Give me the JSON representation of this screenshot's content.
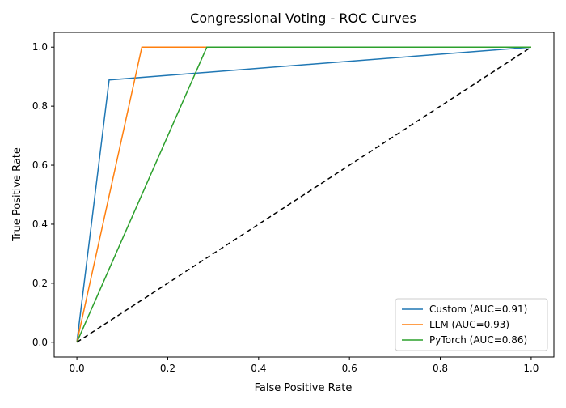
{
  "chart_data": {
    "type": "line",
    "title": "Congressional Voting - ROC Curves",
    "xlabel": "False Positive Rate",
    "ylabel": "True Positive Rate",
    "xlim": [
      -0.05,
      1.05
    ],
    "ylim": [
      -0.05,
      1.05
    ],
    "xticks": [
      "0.0",
      "0.2",
      "0.4",
      "0.6",
      "0.8",
      "1.0"
    ],
    "yticks": [
      "0.0",
      "0.2",
      "0.4",
      "0.6",
      "0.8",
      "1.0"
    ],
    "grid": false,
    "legend_position": "lower-right",
    "series": [
      {
        "name": "Custom (AUC=0.91)",
        "color": "#1f77b4",
        "x": [
          0.0,
          0.071,
          1.0
        ],
        "y": [
          0.0,
          0.889,
          1.0
        ]
      },
      {
        "name": "LLM (AUC=0.93)",
        "color": "#ff7f0e",
        "x": [
          0.0,
          0.143,
          1.0
        ],
        "y": [
          0.0,
          1.0,
          1.0
        ]
      },
      {
        "name": "PyTorch (AUC=0.86)",
        "color": "#2ca02c",
        "x": [
          0.0,
          0.286,
          1.0
        ],
        "y": [
          0.0,
          1.0,
          1.0
        ]
      }
    ],
    "reference_line": {
      "x": [
        0.0,
        1.0
      ],
      "y": [
        0.0,
        1.0
      ],
      "color": "#000000",
      "style": "dashed"
    }
  }
}
